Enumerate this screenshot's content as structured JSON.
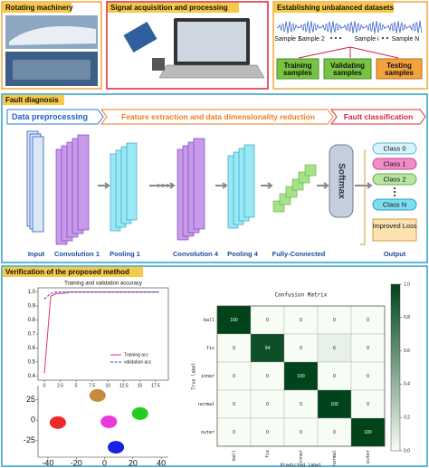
{
  "top": {
    "rotating_machinery": "Rotating machinery",
    "signal": "Signal acquisition and processing",
    "datasets": {
      "title": "Establishing unbalanced datasets",
      "samples": [
        "Sample 1",
        "Sample 2",
        "Sample i",
        "Sample N"
      ],
      "splits": [
        "Training samples",
        "Validating samples",
        "Testing samples"
      ]
    }
  },
  "fault_diagnosis": {
    "title": "Fault diagnosis",
    "stages": [
      "Data preprocessing",
      "Feature extraction and data dimensionality reduction",
      "Fault classification"
    ],
    "layers": [
      "Input",
      "Convolution 1",
      "Pooling 1",
      "Convolution 4",
      "Pooling 4",
      "Fully-Connected",
      "Output"
    ],
    "softmax": "Softmax",
    "classes": [
      "Class 0",
      "Class 1",
      "Class 2",
      "Class N"
    ],
    "loss": "Improved Loss"
  },
  "verification": {
    "title": "Verification of the proposed method",
    "accuracy": {
      "type": "line",
      "title": "Training and validation accuracy",
      "x": [
        0,
        1,
        2,
        3,
        4,
        5,
        6,
        7,
        8,
        9,
        10,
        11,
        12,
        13,
        14,
        15,
        16,
        17,
        18
      ],
      "series": [
        {
          "name": "Training acc",
          "color": "#e8336b",
          "values": [
            0.42,
            0.97,
            0.99,
            0.99,
            1,
            1,
            1,
            1,
            1,
            1,
            1,
            1,
            1,
            1,
            1,
            1,
            1,
            1,
            1
          ]
        },
        {
          "name": "validation acc",
          "color": "#2c3fd6",
          "values": [
            0.95,
            0.99,
            1,
            1,
            1,
            1,
            1,
            1,
            1,
            1,
            1,
            1,
            1,
            1,
            1,
            1,
            1,
            1,
            1
          ]
        }
      ],
      "xlim": [
        -1,
        19.5
      ],
      "ylim": [
        0.37,
        1.03
      ],
      "xticks": [
        0,
        2.5,
        5,
        7.5,
        10,
        12.5,
        15,
        17.5
      ],
      "yticks": [
        0.4,
        0.5,
        0.6,
        0.7,
        0.8,
        0.9,
        {
          "value": 1,
          "label": "1.0"
        }
      ]
    },
    "tsne": {
      "type": "scatter",
      "clusters": [
        {
          "color": "#c98a3c",
          "x": -5,
          "y": 30
        },
        {
          "color": "#ee2a2a",
          "x": -33,
          "y": -3
        },
        {
          "color": "#e83ad8",
          "x": 3,
          "y": -2
        },
        {
          "color": "#22cc22",
          "x": 25,
          "y": 8
        },
        {
          "color": "#1a22dd",
          "x": 8,
          "y": -33
        }
      ],
      "xlim": [
        -47,
        45
      ],
      "ylim": [
        -45,
        42
      ],
      "xticks": [
        -40,
        -20,
        0,
        20,
        40
      ],
      "yticks": [
        -25,
        0,
        25
      ]
    },
    "confusion": {
      "type": "heatmap",
      "title": "Confusion Matrix",
      "xlabel": "Predicted label",
      "ylabel": "True label",
      "categories": [
        "ball",
        "fix",
        "inner",
        "normal",
        "outer"
      ],
      "matrix": [
        [
          100,
          0,
          0,
          0,
          0
        ],
        [
          0,
          94,
          0,
          6,
          0
        ],
        [
          0,
          0,
          100,
          0,
          0
        ],
        [
          0,
          0,
          0,
          100,
          0
        ],
        [
          0,
          0,
          0,
          0,
          100
        ]
      ],
      "clim": [
        0,
        1
      ],
      "cticks": [
        {
          "value": 0,
          "label": "0.0"
        },
        0.2,
        0.4,
        0.6,
        0.8,
        {
          "value": 1,
          "label": "1.0"
        }
      ]
    }
  }
}
